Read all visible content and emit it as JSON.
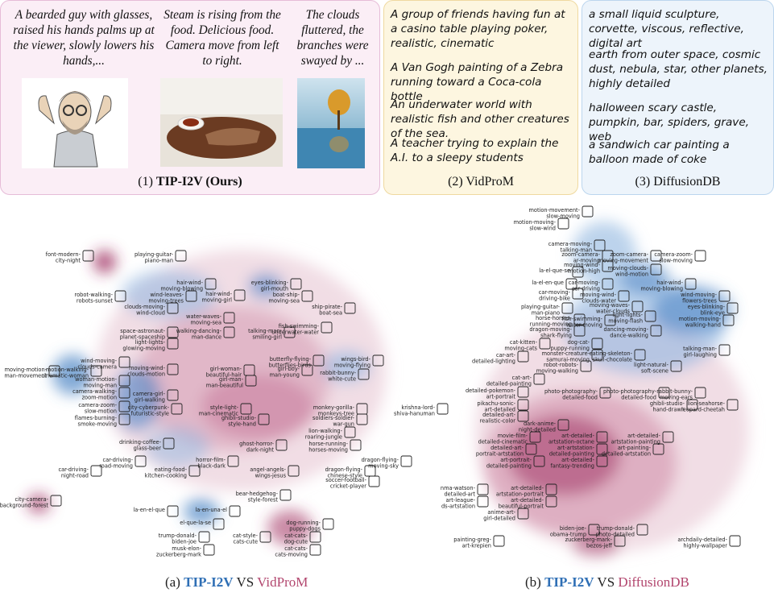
{
  "tip_i2v": {
    "captions": [
      "A bearded guy with glasses, raised his hands palms up at the viewer, slowly lowers his hands,...",
      "Steam is rising from the food. Delicious food. Camera move from left to right.",
      "The clouds fluttered, the branches were swayed by ..."
    ],
    "title_num": "(1) ",
    "title_name": "TIP-I2V (Ours)"
  },
  "vidprom": {
    "prompts": [
      "A group of friends having fun at a casino table playing poker, realistic, cinematic",
      "A Van Gogh painting of a Zebra running toward a Coca-cola bottle",
      "An underwater world with realistic fish and other creatures of the sea.",
      "A teacher trying to explain the A.I. to a sleepy students"
    ],
    "title": "(2) VidProM"
  },
  "diffusiondb": {
    "prompts": [
      "a small liquid sculpture, corvette, viscous, reflective, digital art",
      "earth from outer space, cosmic dust, nebula, star, other planets, highly detailed",
      "halloween scary castle, pumpkin, bar, spiders, grave, web",
      "a sandwich car painting a balloon made of coke"
    ],
    "title": "(3) DiffusionDB"
  },
  "map_a": {
    "labels": [
      [
        "font-modern-",
        "city-night"
      ],
      [
        "playing-guitar-",
        "piano-man"
      ],
      [
        "hair-wind-",
        "moving-blowing"
      ],
      [
        "hair-wind-",
        "moving-girl"
      ],
      [
        "eyes-blinking-",
        "girl-mouth"
      ],
      [
        "robot-walking-",
        "robots-sunset"
      ],
      [
        "wind-leaves-",
        "moving-trees"
      ],
      [
        "boat-ship-",
        "moving-sea"
      ],
      [
        "clouds-moving-",
        "wind-cloud"
      ],
      [
        "ship-pirate-",
        "boat-sea"
      ],
      [
        "water-waves-",
        "moving-sea"
      ],
      [
        "fish-swimming-",
        "underwater-water"
      ],
      [
        "space-astronaut-",
        "planet-spaceship"
      ],
      [
        "walking-dancing-",
        "man-dance"
      ],
      [
        "talking-man-",
        "smiling-girl"
      ],
      [
        "light-lights-",
        "glowing-moving"
      ],
      [
        "wind-moving-",
        "clouds-camera"
      ],
      [
        "butterfly-flying-",
        "butterflies-birds"
      ],
      [
        "wings-bird-",
        "moving-flying"
      ],
      [
        "moving-motion-",
        "man-movement"
      ],
      [
        "motion-walking-",
        "cinematic-woman"
      ],
      [
        "moving-wind-",
        "clouds-motion"
      ],
      [
        "girl-woman-",
        "beautiful-hair"
      ],
      [
        "girl-boy-",
        "man-young"
      ],
      [
        "rabbit-bunny-",
        "white-cute"
      ],
      [
        "woman-motion-",
        "moving-man"
      ],
      [
        "girl-man-",
        "man-beautiful"
      ],
      [
        "camera-walking-",
        "zoom-motion"
      ],
      [
        "camera-girl-",
        "girl-walking"
      ],
      [
        "krishna-lord-",
        "shiva-hanuman"
      ],
      [
        "camera-zoom-",
        "slow-motion"
      ],
      [
        "city-cyberpunk-",
        "futuristic-style"
      ],
      [
        "style-light-",
        "man-cinematic"
      ],
      [
        "monkey-gorilla-",
        "monkeys-tree"
      ],
      [
        "flames-burning-",
        "smoke-moving"
      ],
      [
        "ghibli-studio-",
        "style-hand"
      ],
      [
        "soldiers-soldier-",
        "war-gun"
      ],
      [
        "lion-walking-",
        "roaring-jungle"
      ],
      [
        "drinking-coffee-",
        "glass-beer"
      ],
      [
        "ghost-horror-",
        "dark-night"
      ],
      [
        "horse-running-",
        "horses-moving"
      ],
      [
        "car-driving-",
        "road-moving"
      ],
      [
        "horror-film-",
        "black-dark"
      ],
      [
        "dragon-flying-",
        "moving-sky"
      ],
      [
        "car-driving-",
        "night-road"
      ],
      [
        "eating-food-",
        "kitchen-cooking"
      ],
      [
        "angel-angels-",
        "wings-jesus"
      ],
      [
        "dragon-flying-",
        "chinese-style"
      ],
      [
        "soccer-football-",
        "cricket-player"
      ],
      [
        "city-camera-",
        "background-forest"
      ],
      [
        "bear-hedgehog-",
        "style-forest"
      ],
      [
        "la-en-el-que"
      ],
      [
        "la-en-una-el"
      ],
      [
        "el-que-la-se"
      ],
      [
        "dog-running-",
        "puppy-dogs"
      ],
      [
        "trump-donald-",
        "biden-joe"
      ],
      [
        "cat-style-",
        "cats-cute"
      ],
      [
        "cat-cats-",
        "dog-cute"
      ],
      [
        "musk-elon-",
        "zuckerberg-mark"
      ],
      [
        "cat-cats-",
        "cats-moving"
      ]
    ]
  },
  "map_b": {
    "labels": [
      [
        "motion-movement-",
        "slow-moving"
      ],
      [
        "motion-moving-",
        "slow-wind"
      ],
      [
        "camera-moving-",
        "talking-man"
      ],
      [
        "zoom-camera-",
        "ar-moving"
      ],
      [
        "zoom-camera-",
        "moving-movement"
      ],
      [
        "camera-zoom-",
        "slow-moving"
      ],
      [
        "moving-wind-",
        "motion-high"
      ],
      [
        "la-el-que-se"
      ],
      [
        "moving-clouds-",
        "wind-motion"
      ],
      [
        "la-el-en-que"
      ],
      [
        "car-moving-",
        "car-driving"
      ],
      [
        "hair-wind-",
        "moving-blowing"
      ],
      [
        "car-moving-",
        "driving-bike"
      ],
      [
        "moving-wind-",
        "clouds-water"
      ],
      [
        "wind-moving-",
        "flowers-trees"
      ],
      [
        "playing-guitar-",
        "man-piano"
      ],
      [
        "moving-waves-",
        "water-clouds"
      ],
      [
        "light-lights-",
        "moving-flash"
      ],
      [
        "eyes-blinking-",
        "blink-eye"
      ],
      [
        "horse-horses-",
        "running-moving"
      ],
      [
        "fish-swimming-",
        "water-moving"
      ],
      [
        "motion-moving-",
        "walking-hand"
      ],
      [
        "dragon-moving-",
        "shark-flying"
      ],
      [
        "dancing-moving-",
        "dance-walking"
      ],
      [
        "cat-kitten-",
        "moving-cats"
      ],
      [
        "dog-cat-",
        "puppy-running"
      ],
      [
        "talking-man-",
        "girl-laughing"
      ],
      [
        "car-art-",
        "detailed-lighting"
      ],
      [
        "monster-creature-",
        "samurai-moving"
      ],
      [
        "eating-skeleton-",
        "skull-chocolate"
      ],
      [
        "robot-robots-",
        "moving-walking"
      ],
      [
        "light-natural-",
        "soft-scene"
      ],
      [
        "cat-art-",
        "detailed-painting"
      ],
      [
        "detailed-pokemon-",
        "art-portrait"
      ],
      [
        "photo-photography-",
        "detailed-food"
      ],
      [
        "photo-photography-",
        "detailed-food"
      ],
      [
        "rabbit-bunny-",
        "moving-ears"
      ],
      [
        "pikachu-sonic-",
        "art-detailed"
      ],
      [
        "ghibli-studio-",
        "hand-drawn"
      ],
      [
        "lion-seahorse-",
        "leopard-cheetah"
      ],
      [
        "detailed-art-",
        "realistic-color"
      ],
      [
        "dark-anime-",
        "night-detailed"
      ],
      [
        "movie-film-",
        "detailed-cinematic"
      ],
      [
        "art-detailed-",
        "artstation-octane"
      ],
      [
        "art-detailed-",
        "artstation-painting"
      ],
      [
        "detailed-art-",
        "portrait-artstation"
      ],
      [
        "art-artstation-",
        "detailed-painting"
      ],
      [
        "art-painting-",
        "detailed-artstation"
      ],
      [
        "art-detailed-",
        "fantasy-trending"
      ],
      [
        "art-portrait-",
        "detailed-painting"
      ],
      [
        "nma-watson-",
        "detailed-art"
      ],
      [
        "art-detailed-",
        "artstation-portrait"
      ],
      [
        "art-league-",
        "ds-artstation"
      ],
      [
        "art-detailed-",
        "beautiful-portrait"
      ],
      [
        "anime-art-",
        "girl-detailed"
      ],
      [
        "biden-joe-",
        "obama-trump"
      ],
      [
        "trump-donald-",
        "photo-detailed"
      ],
      [
        "zuckerberg-mark-",
        "bezos-jeff"
      ],
      [
        "painting-greg-",
        "art-krepien"
      ],
      [
        "archdaily-detailed-",
        "highly-wallpaper"
      ]
    ]
  },
  "subcaptions": {
    "a_prefix": "(a) ",
    "a_blue": "TIP-I2V",
    "a_vs": " VS ",
    "a_red": "VidProM",
    "b_prefix": "(b) ",
    "b_blue": "TIP-I2V",
    "b_vs": " VS ",
    "b_red": "DiffusionDB"
  },
  "colors": {
    "blue": "#2f6fb5",
    "red": "#b2466e",
    "pink_bg": "#fbeef6",
    "yellow_bg": "#fdf6e0",
    "blue_bg": "#edf4fb"
  }
}
